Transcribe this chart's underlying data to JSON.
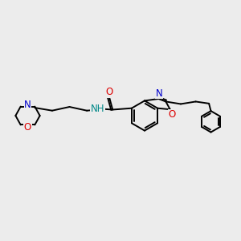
{
  "bg_color": "#ececec",
  "bond_color": "#000000",
  "N_color": "#0000cc",
  "O_color": "#dd0000",
  "NH_color": "#008888",
  "bond_lw": 1.4,
  "font_size": 8.5,
  "fig_width": 3.0,
  "fig_height": 3.0,
  "xlim": [
    0,
    10
  ],
  "ylim": [
    0,
    10
  ]
}
